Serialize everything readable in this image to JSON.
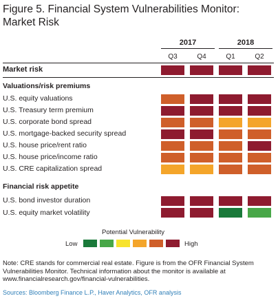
{
  "figure": {
    "title_line1": "Figure 5. Financial System Vulnerabilities Monitor:",
    "title_line2": "Market Risk"
  },
  "colors": {
    "level1": "#1a7a3a",
    "level2": "#48a748",
    "level3": "#f7e32d",
    "level4": "#f4a52a",
    "level5": "#cf5f2a",
    "level6": "#8e1b2f"
  },
  "chart_data": {
    "type": "heatmap",
    "years": [
      "2017",
      "2018"
    ],
    "quarters": [
      "Q3",
      "Q4",
      "Q1",
      "Q2"
    ],
    "main_row": {
      "label": "Market risk",
      "values": [
        6,
        6,
        6,
        6
      ]
    },
    "sections": [
      {
        "label": "Valuations/risk premiums",
        "rows": [
          {
            "label": "U.S. equity valuations",
            "values": [
              5,
              6,
              6,
              6
            ]
          },
          {
            "label": "U.S. Treasury term premium",
            "values": [
              6,
              6,
              6,
              6
            ]
          },
          {
            "label": "U.S. corporate bond spread",
            "values": [
              5,
              5,
              4,
              4
            ]
          },
          {
            "label": "U.S. mortgage-backed security spread",
            "values": [
              6,
              6,
              5,
              5
            ]
          },
          {
            "label": "U.S. house price/rent ratio",
            "values": [
              5,
              5,
              5,
              6
            ]
          },
          {
            "label": "U.S. house price/income ratio",
            "values": [
              5,
              5,
              5,
              5
            ]
          },
          {
            "label": "U.S. CRE capitalization spread",
            "values": [
              4,
              4,
              5,
              5
            ]
          }
        ]
      },
      {
        "label": "Financial risk appetite",
        "rows": [
          {
            "label": "U.S. bond investor duration",
            "values": [
              6,
              6,
              6,
              6
            ]
          },
          {
            "label": "U.S. equity market volatility",
            "values": [
              6,
              6,
              1,
              2
            ]
          }
        ]
      }
    ],
    "legend": {
      "title": "Potential Vulnerability",
      "low_label": "Low",
      "high_label": "High",
      "levels": [
        1,
        2,
        3,
        4,
        5,
        6
      ]
    }
  },
  "footer": {
    "note": "Note: CRE stands for commercial real estate. Figure is from the OFR Financial System Vulnerabilities Monitor. Technical information about the monitor is available at www.financialresearch.gov/financial-vulnerabilities.",
    "sources": "Sources: Bloomberg Finance L.P., Haver Analytics, OFR analysis"
  }
}
